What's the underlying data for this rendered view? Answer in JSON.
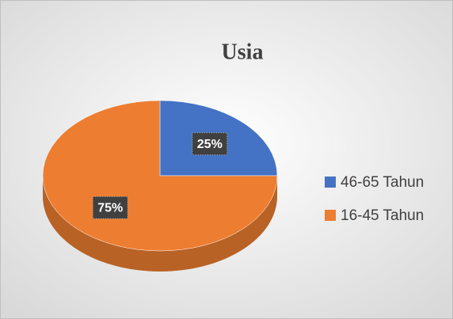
{
  "chart_data": {
    "type": "pie",
    "title": "Usia",
    "categories": [
      "46-65 Tahun",
      "16-45 Tahun"
    ],
    "values": [
      25,
      75
    ],
    "value_labels": [
      "25%",
      "75%"
    ],
    "colors": [
      "#4472c4",
      "#ed7d31"
    ],
    "legend": "right"
  }
}
